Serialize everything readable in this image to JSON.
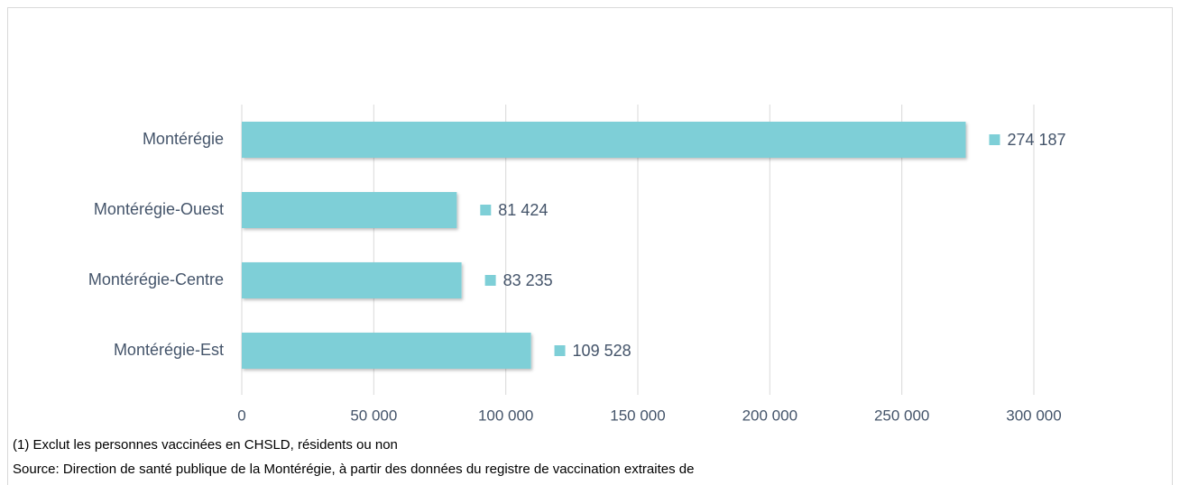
{
  "chart_data": {
    "type": "barh",
    "categories": [
      "Montérégie",
      "Montérégie-Ouest",
      "Montérégie-Centre",
      "Montérégie-Est"
    ],
    "values": [
      274187,
      81424,
      83235,
      109528
    ],
    "value_labels": [
      "274 187",
      "81 424",
      "83 235",
      "109 528"
    ],
    "color": "#7ecfd7",
    "xlim": [
      0,
      300000
    ],
    "xticks": [
      0,
      {
        "value": 50000,
        "label": "50 000"
      },
      {
        "value": 100000,
        "label": "100 000"
      },
      {
        "value": 150000,
        "label": "150 000"
      },
      {
        "value": 200000,
        "label": "200 000"
      },
      {
        "value": 250000,
        "label": "250 000"
      },
      {
        "value": 300000,
        "label": "300 000"
      }
    ],
    "grid": true,
    "notes": [
      "(1) Exclut les personnes vaccinées en CHSLD, résidents ou non",
      "Source: Direction de santé publique de la Montérégie, à partir des données du registre de vaccination extraites de"
    ]
  }
}
